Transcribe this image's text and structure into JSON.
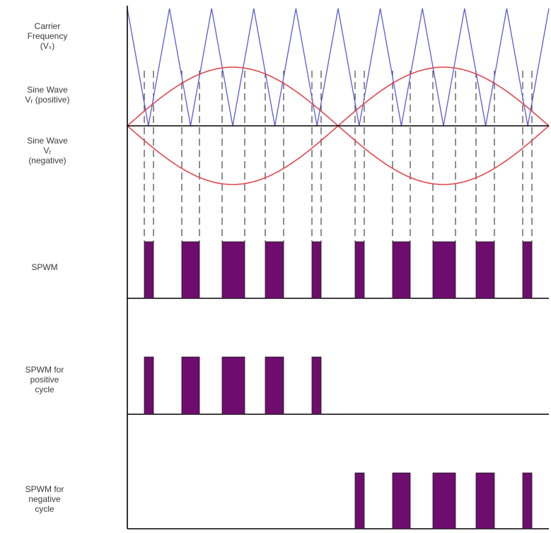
{
  "labels": {
    "carrier": [
      "Carrier",
      "Frequency",
      "(Vₛ)"
    ],
    "sine_positive": [
      "Sine Wave",
      "Vᵣ (positive)"
    ],
    "sine_negative": [
      "Sine Wave",
      "Vᵣ",
      "(negative)"
    ],
    "spwm": [
      "SPWM"
    ],
    "spwm_positive": [
      "SPWM for",
      "positive",
      "cycle"
    ],
    "spwm_negative": [
      "SPWM for",
      "negative",
      "cycle"
    ]
  },
  "colors": {
    "carrier": "#5a5ad6",
    "sine": "#e0474c",
    "pulse": "#6e0d6e",
    "axis": "#000000",
    "dash": "#333333"
  },
  "waveform": {
    "carrier_triangles_per_sine_period": 10,
    "pulses_per_half_cycle": 5
  }
}
